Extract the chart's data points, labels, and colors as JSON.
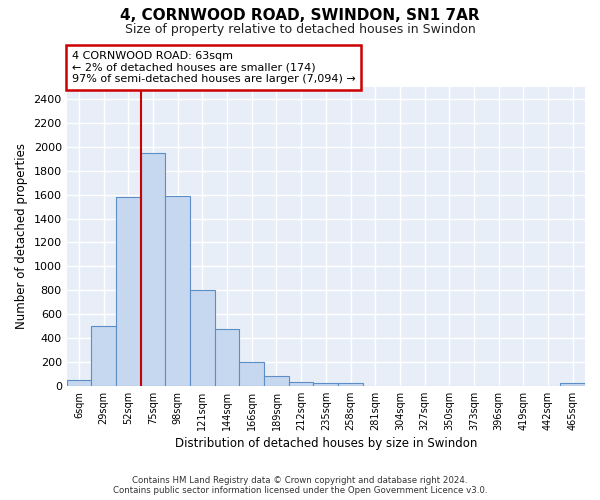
{
  "title": "4, CORNWOOD ROAD, SWINDON, SN1 7AR",
  "subtitle": "Size of property relative to detached houses in Swindon",
  "xlabel": "Distribution of detached houses by size in Swindon",
  "ylabel": "Number of detached properties",
  "bar_color": "#c5d8f0",
  "bar_edge_color": "#5b8ec4",
  "background_color": "#e8eef8",
  "grid_color": "#ffffff",
  "categories": [
    "6sqm",
    "29sqm",
    "52sqm",
    "75sqm",
    "98sqm",
    "121sqm",
    "144sqm",
    "166sqm",
    "189sqm",
    "212sqm",
    "235sqm",
    "258sqm",
    "281sqm",
    "304sqm",
    "327sqm",
    "350sqm",
    "373sqm",
    "396sqm",
    "419sqm",
    "442sqm",
    "465sqm"
  ],
  "values": [
    50,
    500,
    1580,
    1950,
    1590,
    800,
    475,
    200,
    80,
    30,
    20,
    20,
    0,
    0,
    0,
    0,
    0,
    0,
    0,
    0,
    20
  ],
  "ylim": [
    0,
    2500
  ],
  "yticks": [
    0,
    200,
    400,
    600,
    800,
    1000,
    1200,
    1400,
    1600,
    1800,
    2000,
    2200,
    2400
  ],
  "vline_x": 2.5,
  "vline_color": "#cc0000",
  "annotation_text": "4 CORNWOOD ROAD: 63sqm\n← 2% of detached houses are smaller (174)\n97% of semi-detached houses are larger (7,094) →",
  "footer_line1": "Contains HM Land Registry data © Crown copyright and database right 2024.",
  "footer_line2": "Contains public sector information licensed under the Open Government Licence v3.0."
}
